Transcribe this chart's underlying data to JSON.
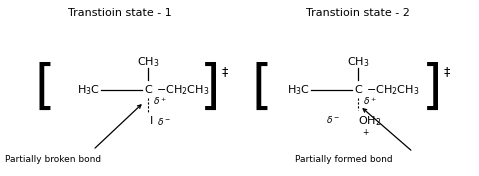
{
  "title1": "Transtioin state - 1",
  "title2": "Transtioin state - 2",
  "label1": "Partially broken bond",
  "label2": "Partially formed bond",
  "bg_color": "#ffffff",
  "text_color": "#000000",
  "figsize": [
    4.79,
    1.76
  ],
  "dpi": 100
}
